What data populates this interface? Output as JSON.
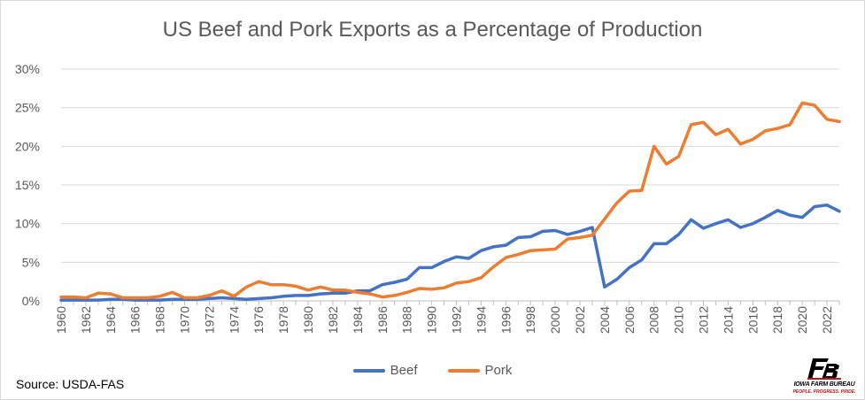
{
  "chart_data": {
    "type": "line",
    "title": "US Beef and Pork Exports as a Percentage of Production",
    "xlabel": "",
    "ylabel": "",
    "ylim": [
      0,
      30
    ],
    "y_ticks": [
      "0%",
      "5%",
      "10%",
      "15%",
      "20%",
      "25%",
      "30%"
    ],
    "y_tick_values": [
      0,
      5,
      10,
      15,
      20,
      25,
      30
    ],
    "x_tick_labels": [
      "1960",
      "1962",
      "1964",
      "1966",
      "1968",
      "1970",
      "1972",
      "1974",
      "1976",
      "1978",
      "1980",
      "1982",
      "1984",
      "1986",
      "1988",
      "1990",
      "1992",
      "1994",
      "1996",
      "1998",
      "2000",
      "2002",
      "2004",
      "2006",
      "2008",
      "2010",
      "2012",
      "2014",
      "2016",
      "2018",
      "2020",
      "2022"
    ],
    "grid": "horizontal",
    "legend_position": "bottom",
    "x": [
      1960,
      1961,
      1962,
      1963,
      1964,
      1965,
      1966,
      1967,
      1968,
      1969,
      1970,
      1971,
      1972,
      1973,
      1974,
      1975,
      1976,
      1977,
      1978,
      1979,
      1980,
      1981,
      1982,
      1983,
      1984,
      1985,
      1986,
      1987,
      1988,
      1989,
      1990,
      1991,
      1992,
      1993,
      1994,
      1995,
      1996,
      1997,
      1998,
      1999,
      2000,
      2001,
      2002,
      2003,
      2004,
      2005,
      2006,
      2007,
      2008,
      2009,
      2010,
      2011,
      2012,
      2013,
      2014,
      2015,
      2016,
      2017,
      2018,
      2019,
      2020,
      2021,
      2022,
      2023
    ],
    "series": [
      {
        "name": "Beef",
        "color": "#4472c4",
        "values": [
          0.1,
          0.1,
          0.1,
          0.1,
          0.2,
          0.2,
          0.1,
          0.1,
          0.1,
          0.2,
          0.2,
          0.2,
          0.3,
          0.4,
          0.3,
          0.2,
          0.3,
          0.4,
          0.6,
          0.7,
          0.7,
          0.9,
          1.0,
          1.0,
          1.3,
          1.3,
          2.1,
          2.4,
          2.8,
          4.3,
          4.3,
          5.1,
          5.7,
          5.5,
          6.5,
          7.0,
          7.2,
          8.2,
          8.3,
          9.0,
          9.1,
          8.6,
          9.0,
          9.5,
          1.8,
          2.8,
          4.3,
          5.3,
          7.4,
          7.4,
          8.6,
          10.5,
          9.4,
          10.0,
          10.5,
          9.5,
          10.0,
          10.8,
          11.7,
          11.1,
          10.8,
          12.2,
          12.4,
          11.6
        ]
      },
      {
        "name": "Pork",
        "color": "#ed7d31",
        "values": [
          0.5,
          0.5,
          0.4,
          1.0,
          0.9,
          0.4,
          0.4,
          0.4,
          0.6,
          1.1,
          0.4,
          0.4,
          0.7,
          1.3,
          0.6,
          1.8,
          2.5,
          2.1,
          2.1,
          1.9,
          1.4,
          1.8,
          1.4,
          1.4,
          1.1,
          0.9,
          0.5,
          0.7,
          1.1,
          1.6,
          1.5,
          1.7,
          2.3,
          2.5,
          3.0,
          4.4,
          5.6,
          6.0,
          6.5,
          6.6,
          6.7,
          8.0,
          8.2,
          8.5,
          10.6,
          12.7,
          14.2,
          14.3,
          20.0,
          17.7,
          18.7,
          22.8,
          23.1,
          21.5,
          22.2,
          20.3,
          20.9,
          22.0,
          22.3,
          22.8,
          25.6,
          25.3,
          23.5,
          23.2
        ]
      }
    ]
  },
  "source": "Source: USDA-FAS",
  "logo": {
    "mark": "FB",
    "name": "IOWA FARM BUREAU",
    "tagline": "PEOPLE. PROGRESS. PRIDE."
  }
}
